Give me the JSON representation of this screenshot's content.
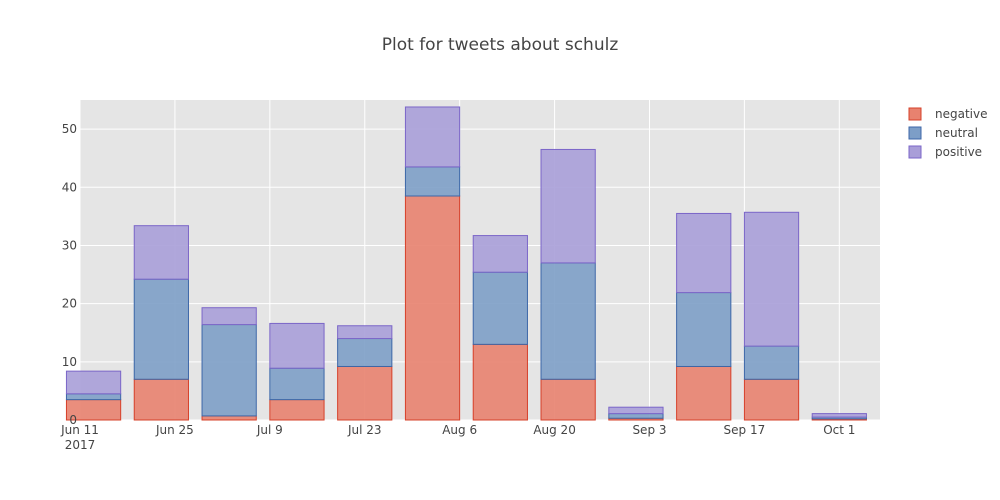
{
  "chart_data": {
    "type": "bar",
    "stacked": true,
    "title": "Plot for tweets about schulz",
    "xlabel": "",
    "ylabel": "",
    "x_axis_type": "date",
    "xlim": [
      "2017-06-11",
      "2017-10-07"
    ],
    "ylim": [
      0,
      55
    ],
    "y_ticks": [
      0,
      10,
      20,
      30,
      40,
      50
    ],
    "x_ticks": [
      {
        "date": "2017-06-11",
        "label": "Jun 11",
        "sublabel": "2017"
      },
      {
        "date": "2017-06-25",
        "label": "Jun 25"
      },
      {
        "date": "2017-07-09",
        "label": "Jul 9"
      },
      {
        "date": "2017-07-23",
        "label": "Jul 23"
      },
      {
        "date": "2017-08-06",
        "label": "Aug 6"
      },
      {
        "date": "2017-08-20",
        "label": "Aug 20"
      },
      {
        "date": "2017-09-03",
        "label": "Sep 3"
      },
      {
        "date": "2017-09-17",
        "label": "Sep 17"
      },
      {
        "date": "2017-10-01",
        "label": "Oct 1"
      }
    ],
    "x": [
      "2017-06-13",
      "2017-06-23",
      "2017-07-03",
      "2017-07-13",
      "2017-07-23",
      "2017-08-02",
      "2017-08-12",
      "2017-08-22",
      "2017-09-01",
      "2017-09-11",
      "2017-09-21",
      "2017-10-01"
    ],
    "series": [
      {
        "name": "negative",
        "values": [
          3.5,
          7.0,
          0.7,
          3.5,
          9.2,
          38.5,
          13.0,
          7.0,
          0.3,
          9.2,
          7.0,
          0.2
        ],
        "color": "#e8826f",
        "line": "#d6402a"
      },
      {
        "name": "neutral",
        "values": [
          1.0,
          17.2,
          15.7,
          5.4,
          4.8,
          5.0,
          12.4,
          20.0,
          0.8,
          12.7,
          5.7,
          0.3
        ],
        "color": "#7d9ec7",
        "line": "#3d67a8"
      },
      {
        "name": "positive",
        "values": [
          3.9,
          9.2,
          2.9,
          7.7,
          2.2,
          10.3,
          6.3,
          19.5,
          1.1,
          13.6,
          23.0,
          0.6
        ],
        "color": "#a99ed8",
        "line": "#7b66c8"
      }
    ],
    "grid": true,
    "legend_position": "top-right",
    "plot_background": "#e5e5e5"
  }
}
